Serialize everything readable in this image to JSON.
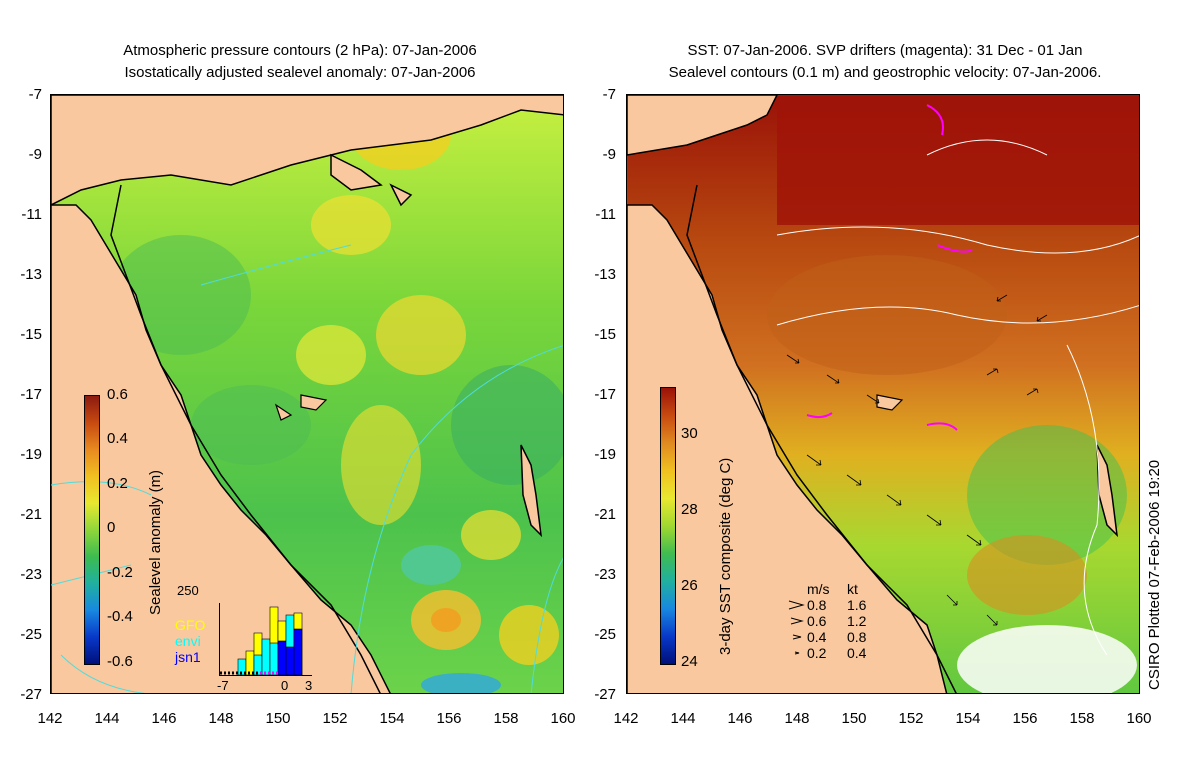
{
  "left_title": {
    "line1": "Atmospheric pressure contours (2 hPa): 07-Jan-2006",
    "line2": "Isostatically adjusted sealevel anomaly: 07-Jan-2006"
  },
  "right_title": {
    "line1": "SST: 07-Jan-2006. SVP drifters (magenta): 31 Dec - 01 Jan",
    "line2": "Sealevel contours (0.1 m) and geostrophic velocity: 07-Jan-2006."
  },
  "lat_ticks": [
    "-7",
    "-9",
    "-11",
    "-13",
    "-15",
    "-17",
    "-19",
    "-21",
    "-23",
    "-25",
    "-27"
  ],
  "lon_ticks": [
    "142",
    "144",
    "146",
    "148",
    "150",
    "152",
    "154",
    "156",
    "158",
    "160"
  ],
  "left_colorbar": {
    "title": "Sealevel anomaly (m)",
    "labels": [
      "0.6",
      "0.4",
      "0.2",
      "0",
      "-0.2",
      "-0.4",
      "-0.6"
    ]
  },
  "right_colorbar": {
    "title": "3-day SST composite (deg C)",
    "labels": [
      "30",
      "28",
      "26",
      "24"
    ]
  },
  "inset": {
    "ymax_label": "250",
    "x_labels": [
      "-7",
      "0",
      "3"
    ],
    "series": [
      "GFO",
      "envi",
      "jsn1"
    ],
    "series_colors": [
      "#ffff00",
      "#00ffff",
      "#0000ff"
    ]
  },
  "velocity_legend": {
    "header_ms": "m/s",
    "header_kt": "kt",
    "rows": [
      {
        "ms": "0.8",
        "kt": "1.6"
      },
      {
        "ms": "0.6",
        "kt": "1.2"
      },
      {
        "ms": "0.4",
        "kt": "0.8"
      },
      {
        "ms": "0.2",
        "kt": "0.4"
      }
    ]
  },
  "credit": "CSIRO Plotted 07-Feb-2006 19:20",
  "colors": {
    "land": "#fac89e",
    "coast": "#000000",
    "pressure_contour": "#4fdcdc",
    "sl_contour": "#ffffff"
  }
}
